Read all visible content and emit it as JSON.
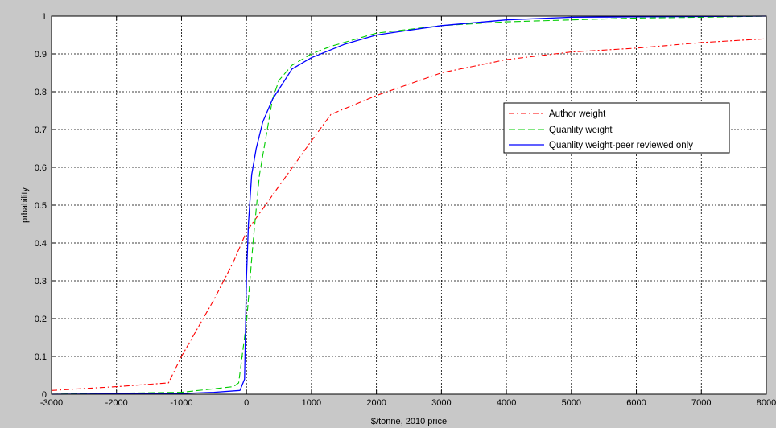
{
  "chart_data": {
    "type": "line",
    "title": "",
    "xlabel": "$/tonne, 2010 price",
    "ylabel": "prbability",
    "xlim": [
      -3000,
      8000
    ],
    "ylim": [
      0,
      1
    ],
    "xticks": [
      -3000,
      -2000,
      -1000,
      0,
      1000,
      2000,
      3000,
      4000,
      5000,
      6000,
      7000,
      8000
    ],
    "yticks": [
      0,
      0.1,
      0.2,
      0.3,
      0.4,
      0.5,
      0.6,
      0.7,
      0.8,
      0.9,
      1
    ],
    "grid": true,
    "legend_position": "right",
    "series": [
      {
        "name": "Author weight",
        "color": "#ff0000",
        "style": "dash-dot",
        "x": [
          -3000,
          -2000,
          -1200,
          -1000,
          -500,
          -200,
          0,
          500,
          1000,
          1300,
          2000,
          3000,
          4000,
          5000,
          6000,
          7000,
          8000
        ],
        "y": [
          0.01,
          0.02,
          0.03,
          0.1,
          0.25,
          0.35,
          0.43,
          0.55,
          0.67,
          0.74,
          0.79,
          0.85,
          0.885,
          0.905,
          0.915,
          0.93,
          0.94
        ]
      },
      {
        "name": "Quanlity weight",
        "color": "#00cc00",
        "style": "dashed",
        "x": [
          -3000,
          -1000,
          -200,
          -120,
          0,
          100,
          200,
          400,
          500,
          700,
          1000,
          1300,
          2000,
          3000,
          4000,
          5000,
          6000,
          7000,
          8000
        ],
        "y": [
          0,
          0.005,
          0.02,
          0.03,
          0.19,
          0.4,
          0.58,
          0.78,
          0.83,
          0.87,
          0.9,
          0.92,
          0.955,
          0.975,
          0.985,
          0.99,
          0.995,
          0.997,
          1.0
        ]
      },
      {
        "name": "Quanlity weight-peer reviewed only",
        "color": "#0000ff",
        "style": "solid",
        "x": [
          -3000,
          -1000,
          -500,
          -100,
          -30,
          0,
          30,
          80,
          150,
          250,
          400,
          700,
          1000,
          1500,
          2000,
          3000,
          4000,
          5000,
          6000,
          7000,
          8000
        ],
        "y": [
          0,
          0.002,
          0.005,
          0.01,
          0.04,
          0.31,
          0.45,
          0.58,
          0.65,
          0.72,
          0.78,
          0.86,
          0.89,
          0.925,
          0.95,
          0.975,
          0.99,
          0.997,
          0.998,
          0.999,
          1.0
        ]
      }
    ]
  }
}
